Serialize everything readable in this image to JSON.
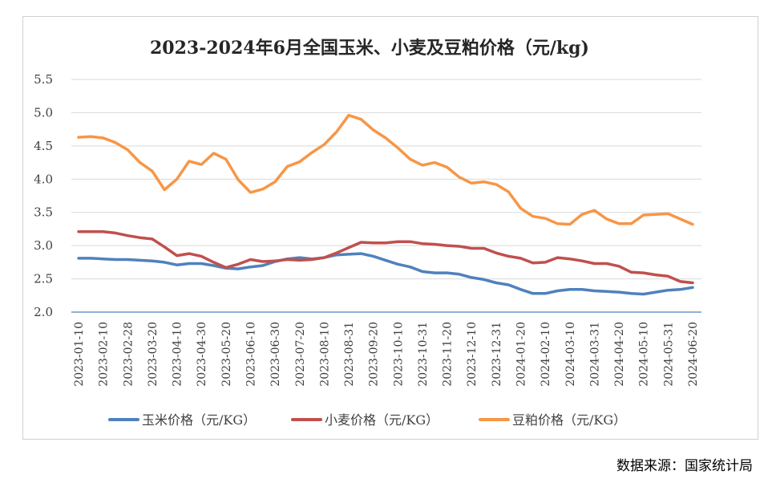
{
  "source": "数据来源：国家统计局",
  "chart_data": {
    "type": "line",
    "title": "2023-2024年6月全国玉米、小麦及豆粕价格（元/kg)",
    "ylim": [
      2.0,
      5.5
    ],
    "yticks": [
      "2.0",
      "2.5",
      "3.0",
      "3.5",
      "4.0",
      "4.5",
      "5.0",
      "5.5"
    ],
    "grid": true,
    "legend": "bottom",
    "x_labels": [
      "2023-01-10",
      "2023-02-10",
      "2023-02-28",
      "2023-03-20",
      "2023-04-10",
      "2023-04-30",
      "2023-05-20",
      "2023-06-10",
      "2023-06-30",
      "2023-07-20",
      "2023-08-10",
      "2023-08-31",
      "2023-09-20",
      "2023-10-10",
      "2023-10-31",
      "2023-11-20",
      "2023-12-10",
      "2023-12-31",
      "2024-01-20",
      "2024-02-10",
      "2024-03-10",
      "2024-03-31",
      "2024-04-20",
      "2024-05-10",
      "2024-05-31",
      "2024-06-20"
    ],
    "series": [
      {
        "name": "玉米价格（元/KG）",
        "color": "#4f81bd",
        "values": [
          2.81,
          2.81,
          2.8,
          2.79,
          2.79,
          2.78,
          2.77,
          2.75,
          2.71,
          2.73,
          2.73,
          2.7,
          2.66,
          2.65,
          2.68,
          2.7,
          2.76,
          2.8,
          2.82,
          2.8,
          2.82,
          2.86,
          2.87,
          2.88,
          2.84,
          2.78,
          2.72,
          2.68,
          2.61,
          2.59,
          2.59,
          2.57,
          2.52,
          2.49,
          2.44,
          2.41,
          2.34,
          2.28,
          2.28,
          2.32,
          2.34,
          2.34,
          2.32,
          2.31,
          2.3,
          2.28,
          2.27,
          2.3,
          2.33,
          2.34,
          2.37
        ]
      },
      {
        "name": "小麦价格（元/KG）",
        "color": "#c0504d",
        "values": [
          3.21,
          3.21,
          3.21,
          3.19,
          3.15,
          3.12,
          3.1,
          2.98,
          2.85,
          2.88,
          2.84,
          2.75,
          2.67,
          2.72,
          2.79,
          2.76,
          2.77,
          2.79,
          2.78,
          2.79,
          2.82,
          2.89,
          2.97,
          3.05,
          3.04,
          3.04,
          3.06,
          3.06,
          3.03,
          3.02,
          3.0,
          2.99,
          2.96,
          2.96,
          2.89,
          2.84,
          2.81,
          2.74,
          2.75,
          2.82,
          2.8,
          2.77,
          2.73,
          2.73,
          2.69,
          2.6,
          2.59,
          2.56,
          2.54,
          2.46,
          2.44
        ]
      },
      {
        "name": "豆粕价格（元/KG）",
        "color": "#f79646",
        "values": [
          4.63,
          4.64,
          4.62,
          4.55,
          4.44,
          4.25,
          4.12,
          3.84,
          4.0,
          4.27,
          4.22,
          4.39,
          4.3,
          3.99,
          3.8,
          3.85,
          3.96,
          4.19,
          4.26,
          4.4,
          4.52,
          4.71,
          4.96,
          4.9,
          4.74,
          4.62,
          4.47,
          4.3,
          4.21,
          4.25,
          4.18,
          4.03,
          3.94,
          3.96,
          3.92,
          3.81,
          3.56,
          3.44,
          3.41,
          3.33,
          3.32,
          3.47,
          3.53,
          3.4,
          3.33,
          3.33,
          3.46,
          3.47,
          3.48,
          3.4,
          3.32
        ]
      }
    ]
  }
}
